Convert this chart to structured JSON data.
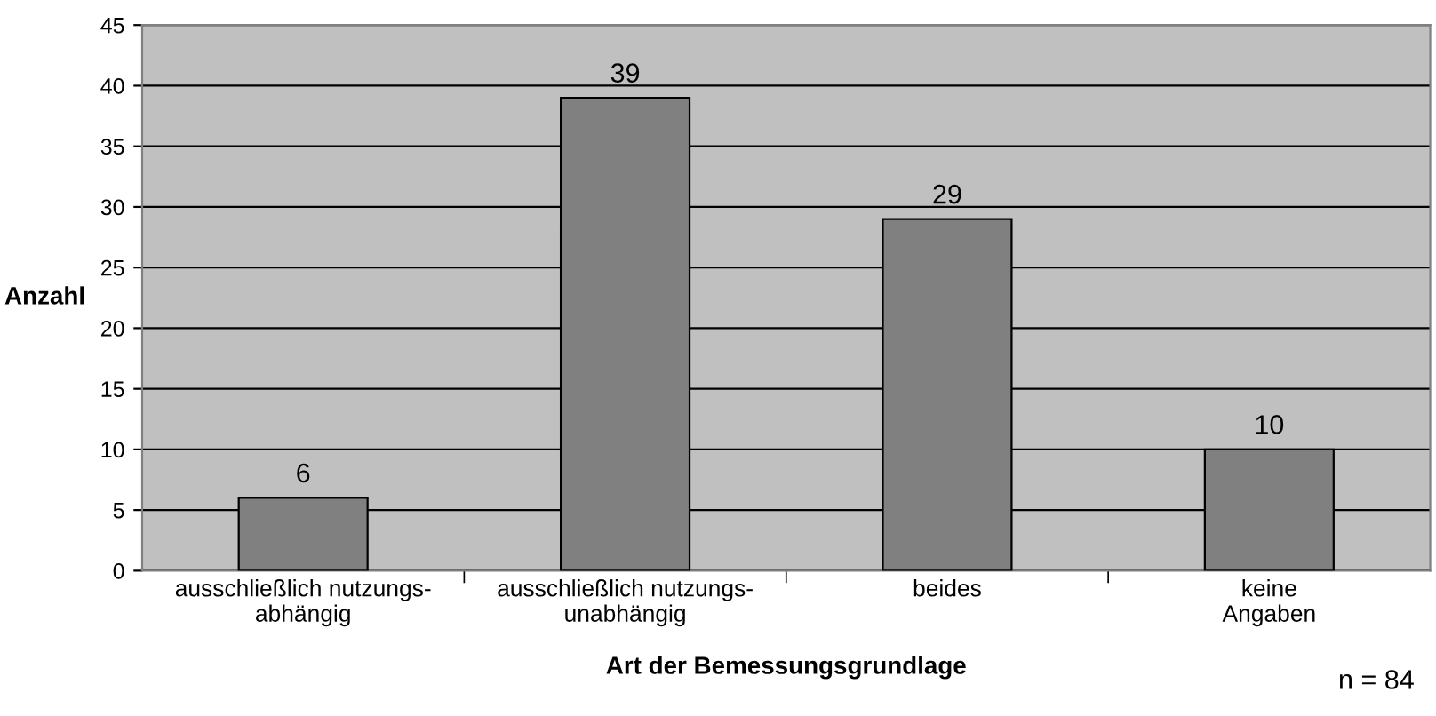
{
  "chart_data": {
    "type": "bar",
    "categories": [
      "ausschließlich nutzungs-\nabhängig",
      "ausschließlich nutzungs-\nunabhängig",
      "beides",
      "keine\nAngaben"
    ],
    "values": [
      6,
      39,
      29,
      10
    ],
    "color": "#808080",
    "xlabel": "Art der Bemessungsgrundlage",
    "ylabel": "Anzahl",
    "ylim": [
      0,
      45
    ],
    "yticks": [
      0,
      5,
      10,
      15,
      20,
      25,
      30,
      35,
      40,
      45
    ],
    "grid": "y",
    "data_labels": true,
    "legend": false,
    "annotations": [
      "n = 84"
    ]
  }
}
